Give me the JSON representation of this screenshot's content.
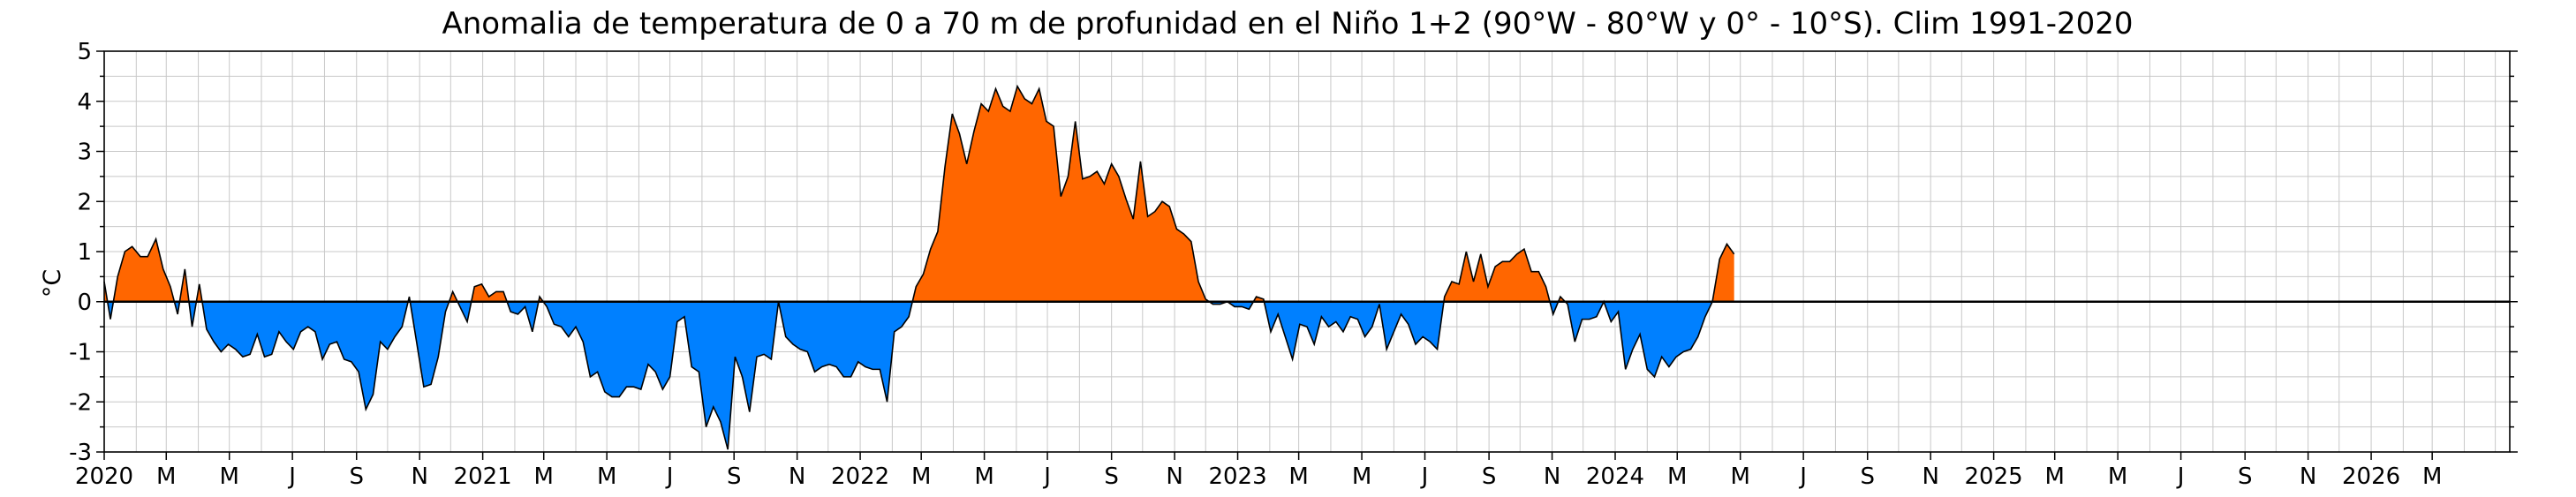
{
  "chart_data": {
    "type": "area",
    "title": "Anomalia de temperatura de 0 a 70 m de profunidad en el Niño 1+2 (90°W - 80°W y 0° - 10°S). Clim 1991-2020",
    "xlabel": "",
    "ylabel": "°C",
    "ylim": [
      -3,
      5
    ],
    "yticks": [
      -3,
      -2,
      -1,
      0,
      1,
      2,
      3,
      4,
      5
    ],
    "xlim": [
      "2020-01-01",
      "2026-05-15"
    ],
    "xticks": [
      {
        "date": "2020-01-01",
        "label": "2020"
      },
      {
        "date": "2020-03-01",
        "label": "M"
      },
      {
        "date": "2020-05-01",
        "label": "M"
      },
      {
        "date": "2020-07-01",
        "label": "J"
      },
      {
        "date": "2020-09-01",
        "label": "S"
      },
      {
        "date": "2020-11-01",
        "label": "N"
      },
      {
        "date": "2021-01-01",
        "label": "2021"
      },
      {
        "date": "2021-03-01",
        "label": "M"
      },
      {
        "date": "2021-05-01",
        "label": "M"
      },
      {
        "date": "2021-07-01",
        "label": "J"
      },
      {
        "date": "2021-09-01",
        "label": "S"
      },
      {
        "date": "2021-11-01",
        "label": "N"
      },
      {
        "date": "2022-01-01",
        "label": "2022"
      },
      {
        "date": "2022-03-01",
        "label": "M"
      },
      {
        "date": "2022-05-01",
        "label": "M"
      },
      {
        "date": "2022-07-01",
        "label": "J"
      },
      {
        "date": "2022-09-01",
        "label": "S"
      },
      {
        "date": "2022-11-01",
        "label": "N"
      },
      {
        "date": "2023-01-01",
        "label": "2023"
      },
      {
        "date": "2023-03-01",
        "label": "M"
      },
      {
        "date": "2023-05-01",
        "label": "M"
      },
      {
        "date": "2023-07-01",
        "label": "J"
      },
      {
        "date": "2023-09-01",
        "label": "S"
      },
      {
        "date": "2023-11-01",
        "label": "N"
      },
      {
        "date": "2024-01-01",
        "label": "2024"
      },
      {
        "date": "2024-03-01",
        "label": "M"
      },
      {
        "date": "2024-05-01",
        "label": "M"
      },
      {
        "date": "2024-07-01",
        "label": "J"
      },
      {
        "date": "2024-09-01",
        "label": "S"
      },
      {
        "date": "2024-11-01",
        "label": "N"
      },
      {
        "date": "2025-01-01",
        "label": "2025"
      },
      {
        "date": "2025-03-01",
        "label": "M"
      },
      {
        "date": "2025-05-01",
        "label": "M"
      },
      {
        "date": "2025-07-01",
        "label": "J"
      },
      {
        "date": "2025-09-01",
        "label": "S"
      },
      {
        "date": "2025-11-01",
        "label": "N"
      },
      {
        "date": "2026-01-01",
        "label": "2026"
      },
      {
        "date": "2026-03-01",
        "label": "M"
      }
    ],
    "grid": true,
    "colors": {
      "positive": "#ff6600",
      "negative": "#0080ff",
      "line": "#000000"
    },
    "series": [
      {
        "points": [
          [
            "2020-01-01",
            0.4
          ],
          [
            "2020-01-07",
            -0.35
          ],
          [
            "2020-01-14",
            0.5
          ],
          [
            "2020-01-21",
            1.0
          ],
          [
            "2020-01-28",
            1.1
          ],
          [
            "2020-02-05",
            0.9
          ],
          [
            "2020-02-12",
            0.9
          ],
          [
            "2020-02-20",
            1.25
          ],
          [
            "2020-02-27",
            0.65
          ],
          [
            "2020-03-05",
            0.3
          ],
          [
            "2020-03-12",
            -0.25
          ],
          [
            "2020-03-19",
            0.65
          ],
          [
            "2020-03-26",
            -0.5
          ],
          [
            "2020-04-02",
            0.35
          ],
          [
            "2020-04-09",
            -0.55
          ],
          [
            "2020-04-16",
            -0.8
          ],
          [
            "2020-04-23",
            -1.0
          ],
          [
            "2020-04-30",
            -0.85
          ],
          [
            "2020-05-07",
            -0.95
          ],
          [
            "2020-05-14",
            -1.1
          ],
          [
            "2020-05-21",
            -1.05
          ],
          [
            "2020-05-28",
            -0.65
          ],
          [
            "2020-06-04",
            -1.1
          ],
          [
            "2020-06-11",
            -1.05
          ],
          [
            "2020-06-18",
            -0.6
          ],
          [
            "2020-06-25",
            -0.8
          ],
          [
            "2020-07-02",
            -0.95
          ],
          [
            "2020-07-09",
            -0.6
          ],
          [
            "2020-07-16",
            -0.5
          ],
          [
            "2020-07-23",
            -0.6
          ],
          [
            "2020-07-30",
            -1.15
          ],
          [
            "2020-08-06",
            -0.85
          ],
          [
            "2020-08-13",
            -0.8
          ],
          [
            "2020-08-20",
            -1.15
          ],
          [
            "2020-08-27",
            -1.2
          ],
          [
            "2020-09-03",
            -1.4
          ],
          [
            "2020-09-10",
            -2.15
          ],
          [
            "2020-09-17",
            -1.85
          ],
          [
            "2020-09-24",
            -0.8
          ],
          [
            "2020-10-01",
            -0.95
          ],
          [
            "2020-10-08",
            -0.7
          ],
          [
            "2020-10-15",
            -0.5
          ],
          [
            "2020-10-22",
            0.1
          ],
          [
            "2020-10-29",
            -0.8
          ],
          [
            "2020-11-05",
            -1.7
          ],
          [
            "2020-11-12",
            -1.65
          ],
          [
            "2020-11-19",
            -1.1
          ],
          [
            "2020-11-26",
            -0.2
          ],
          [
            "2020-12-03",
            0.2
          ],
          [
            "2020-12-10",
            -0.1
          ],
          [
            "2020-12-17",
            -0.4
          ],
          [
            "2020-12-24",
            0.3
          ],
          [
            "2020-12-31",
            0.35
          ],
          [
            "2021-01-07",
            0.1
          ],
          [
            "2021-01-14",
            0.2
          ],
          [
            "2021-01-21",
            0.2
          ],
          [
            "2021-01-28",
            -0.2
          ],
          [
            "2021-02-04",
            -0.25
          ],
          [
            "2021-02-11",
            -0.1
          ],
          [
            "2021-02-18",
            -0.6
          ],
          [
            "2021-02-25",
            0.1
          ],
          [
            "2021-03-04",
            -0.1
          ],
          [
            "2021-03-11",
            -0.45
          ],
          [
            "2021-03-18",
            -0.5
          ],
          [
            "2021-03-25",
            -0.7
          ],
          [
            "2021-04-01",
            -0.5
          ],
          [
            "2021-04-08",
            -0.8
          ],
          [
            "2021-04-15",
            -1.5
          ],
          [
            "2021-04-22",
            -1.4
          ],
          [
            "2021-04-29",
            -1.8
          ],
          [
            "2021-05-06",
            -1.9
          ],
          [
            "2021-05-13",
            -1.9
          ],
          [
            "2021-05-20",
            -1.7
          ],
          [
            "2021-05-27",
            -1.7
          ],
          [
            "2021-06-03",
            -1.75
          ],
          [
            "2021-06-10",
            -1.25
          ],
          [
            "2021-06-17",
            -1.4
          ],
          [
            "2021-06-24",
            -1.75
          ],
          [
            "2021-07-01",
            -1.5
          ],
          [
            "2021-07-08",
            -0.4
          ],
          [
            "2021-07-15",
            -0.3
          ],
          [
            "2021-07-22",
            -1.3
          ],
          [
            "2021-07-29",
            -1.4
          ],
          [
            "2021-08-05",
            -2.5
          ],
          [
            "2021-08-12",
            -2.1
          ],
          [
            "2021-08-19",
            -2.4
          ],
          [
            "2021-08-26",
            -2.95
          ],
          [
            "2021-09-02",
            -1.1
          ],
          [
            "2021-09-09",
            -1.5
          ],
          [
            "2021-09-16",
            -2.2
          ],
          [
            "2021-09-23",
            -1.1
          ],
          [
            "2021-09-30",
            -1.05
          ],
          [
            "2021-10-07",
            -1.15
          ],
          [
            "2021-10-14",
            0.0
          ],
          [
            "2021-10-21",
            -0.7
          ],
          [
            "2021-10-28",
            -0.85
          ],
          [
            "2021-11-04",
            -0.95
          ],
          [
            "2021-11-11",
            -1.0
          ],
          [
            "2021-11-18",
            -1.4
          ],
          [
            "2021-11-25",
            -1.3
          ],
          [
            "2021-12-02",
            -1.25
          ],
          [
            "2021-12-09",
            -1.3
          ],
          [
            "2021-12-16",
            -1.5
          ],
          [
            "2021-12-23",
            -1.5
          ],
          [
            "2021-12-30",
            -1.2
          ],
          [
            "2022-01-06",
            -1.3
          ],
          [
            "2022-01-13",
            -1.35
          ],
          [
            "2022-01-20",
            -1.35
          ],
          [
            "2022-01-27",
            -2.0
          ],
          [
            "2022-02-03",
            -0.6
          ],
          [
            "2022-02-10",
            -0.5
          ],
          [
            "2022-02-17",
            -0.3
          ],
          [
            "2022-02-24",
            0.3
          ],
          [
            "2022-03-03",
            0.55
          ],
          [
            "2022-03-10",
            1.05
          ],
          [
            "2022-03-17",
            1.4
          ],
          [
            "2022-03-24",
            2.7
          ],
          [
            "2022-03-31",
            3.75
          ],
          [
            "2022-04-07",
            3.35
          ],
          [
            "2022-04-14",
            2.75
          ],
          [
            "2022-04-21",
            3.4
          ],
          [
            "2022-04-28",
            3.95
          ],
          [
            "2022-05-05",
            3.8
          ],
          [
            "2022-05-12",
            4.25
          ],
          [
            "2022-05-19",
            3.9
          ],
          [
            "2022-05-26",
            3.8
          ],
          [
            "2022-06-02",
            4.3
          ],
          [
            "2022-06-09",
            4.05
          ],
          [
            "2022-06-16",
            3.95
          ],
          [
            "2022-06-23",
            4.25
          ],
          [
            "2022-06-30",
            3.6
          ],
          [
            "2022-07-07",
            3.5
          ],
          [
            "2022-07-14",
            2.1
          ],
          [
            "2022-07-21",
            2.5
          ],
          [
            "2022-07-28",
            3.6
          ],
          [
            "2022-08-04",
            2.45
          ],
          [
            "2022-08-11",
            2.5
          ],
          [
            "2022-08-18",
            2.6
          ],
          [
            "2022-08-25",
            2.35
          ],
          [
            "2022-09-01",
            2.75
          ],
          [
            "2022-09-08",
            2.5
          ],
          [
            "2022-09-15",
            2.05
          ],
          [
            "2022-09-22",
            1.65
          ],
          [
            "2022-09-29",
            2.8
          ],
          [
            "2022-10-06",
            1.7
          ],
          [
            "2022-10-13",
            1.8
          ],
          [
            "2022-10-20",
            2.0
          ],
          [
            "2022-10-27",
            1.9
          ],
          [
            "2022-11-03",
            1.45
          ],
          [
            "2022-11-10",
            1.35
          ],
          [
            "2022-11-17",
            1.2
          ],
          [
            "2022-11-24",
            0.4
          ],
          [
            "2022-12-01",
            0.05
          ],
          [
            "2022-12-08",
            -0.05
          ],
          [
            "2022-12-15",
            -0.05
          ],
          [
            "2022-12-22",
            0.0
          ],
          [
            "2022-12-29",
            -0.1
          ],
          [
            "2023-01-05",
            -0.1
          ],
          [
            "2023-01-12",
            -0.15
          ],
          [
            "2023-01-19",
            0.1
          ],
          [
            "2023-01-26",
            0.05
          ],
          [
            "2023-02-02",
            -0.6
          ],
          [
            "2023-02-09",
            -0.25
          ],
          [
            "2023-02-16",
            -0.7
          ],
          [
            "2023-02-23",
            -1.15
          ],
          [
            "2023-03-02",
            -0.45
          ],
          [
            "2023-03-09",
            -0.5
          ],
          [
            "2023-03-16",
            -0.85
          ],
          [
            "2023-03-23",
            -0.3
          ],
          [
            "2023-03-30",
            -0.5
          ],
          [
            "2023-04-06",
            -0.4
          ],
          [
            "2023-04-13",
            -0.6
          ],
          [
            "2023-04-20",
            -0.3
          ],
          [
            "2023-04-27",
            -0.35
          ],
          [
            "2023-05-04",
            -0.7
          ],
          [
            "2023-05-11",
            -0.5
          ],
          [
            "2023-05-18",
            -0.05
          ],
          [
            "2023-05-25",
            -0.95
          ],
          [
            "2023-06-01",
            -0.6
          ],
          [
            "2023-06-08",
            -0.25
          ],
          [
            "2023-06-15",
            -0.45
          ],
          [
            "2023-06-22",
            -0.85
          ],
          [
            "2023-06-29",
            -0.7
          ],
          [
            "2023-07-06",
            -0.8
          ],
          [
            "2023-07-13",
            -0.95
          ],
          [
            "2023-07-20",
            0.1
          ],
          [
            "2023-07-27",
            0.4
          ],
          [
            "2023-08-03",
            0.35
          ],
          [
            "2023-08-10",
            1.0
          ],
          [
            "2023-08-17",
            0.4
          ],
          [
            "2023-08-24",
            0.95
          ],
          [
            "2023-08-31",
            0.3
          ],
          [
            "2023-09-07",
            0.7
          ],
          [
            "2023-09-14",
            0.8
          ],
          [
            "2023-09-21",
            0.8
          ],
          [
            "2023-09-28",
            0.95
          ],
          [
            "2023-10-05",
            1.05
          ],
          [
            "2023-10-12",
            0.6
          ],
          [
            "2023-10-19",
            0.6
          ],
          [
            "2023-10-26",
            0.3
          ],
          [
            "2023-11-02",
            -0.25
          ],
          [
            "2023-11-09",
            0.1
          ],
          [
            "2023-11-16",
            -0.05
          ],
          [
            "2023-11-23",
            -0.8
          ],
          [
            "2023-11-30",
            -0.35
          ],
          [
            "2023-12-07",
            -0.35
          ],
          [
            "2023-12-14",
            -0.3
          ],
          [
            "2023-12-21",
            0.0
          ],
          [
            "2023-12-28",
            -0.4
          ],
          [
            "2024-01-04",
            -0.2
          ],
          [
            "2024-01-11",
            -1.35
          ],
          [
            "2024-01-18",
            -0.95
          ],
          [
            "2024-01-25",
            -0.65
          ],
          [
            "2024-02-01",
            -1.35
          ],
          [
            "2024-02-08",
            -1.5
          ],
          [
            "2024-02-15",
            -1.1
          ],
          [
            "2024-02-22",
            -1.3
          ],
          [
            "2024-02-29",
            -1.1
          ],
          [
            "2024-03-07",
            -1.0
          ],
          [
            "2024-03-14",
            -0.95
          ],
          [
            "2024-03-21",
            -0.7
          ],
          [
            "2024-03-28",
            -0.3
          ],
          [
            "2024-04-04",
            0.0
          ],
          [
            "2024-04-11",
            0.85
          ],
          [
            "2024-04-18",
            1.15
          ],
          [
            "2024-04-25",
            0.95
          ]
        ]
      }
    ]
  }
}
